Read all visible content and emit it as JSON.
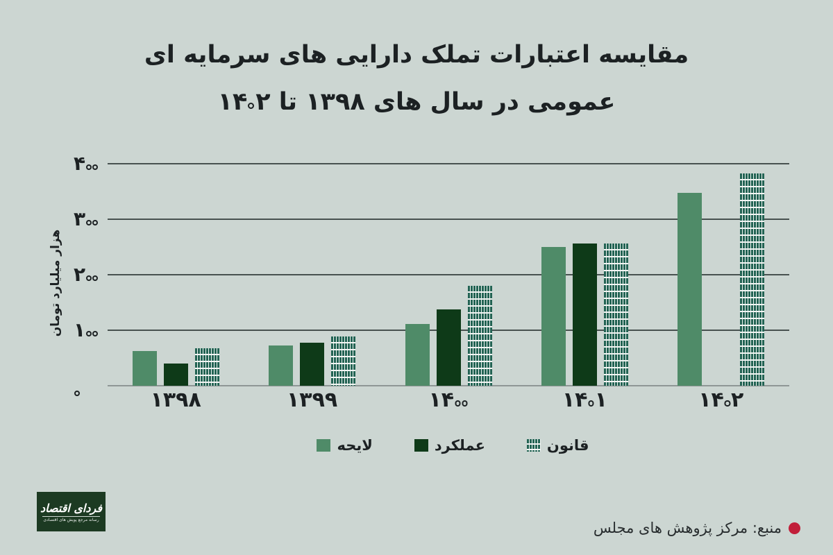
{
  "title": {
    "line1": "مقایسه اعتبارات تملک دارایی های سرمایه ای",
    "line2": "عمومی در سال های ۱۳۹۸ تا ۱۴۰۲"
  },
  "chart_data": {
    "type": "bar",
    "title": "مقایسه اعتبارات تملک دارایی های سرمایه ای عمومی در سال های ۱۳۹۸ تا ۱۴۰۲",
    "categories": [
      "۱۳۹۸",
      "۱۳۹۹",
      "۱۴۰۰",
      "۱۴۰۱",
      "۱۴۰۲"
    ],
    "series": [
      {
        "name": "لایحه",
        "key": "layehe",
        "style": "solid",
        "color": "#4f8b68",
        "values": [
          62,
          73,
          111,
          250,
          348
        ]
      },
      {
        "name": "عملکرد",
        "key": "amalkard",
        "style": "solid",
        "color": "#0e3a18",
        "values": [
          40,
          77,
          138,
          256,
          null
        ]
      },
      {
        "name": "قانون",
        "key": "qanun",
        "style": "dotted-pattern",
        "color": "#226353",
        "values": [
          67,
          89,
          180,
          256,
          382
        ]
      }
    ],
    "xlabel": "",
    "ylabel": "هزار میلیارد تومان",
    "ylim": [
      0,
      400
    ],
    "yticks": [
      "۴۰۰",
      "۳۰۰",
      "۲۰۰",
      "۱۰۰",
      "۰"
    ],
    "ytick_values": [
      400,
      300,
      200,
      100,
      0
    ],
    "grid": "horizontal",
    "legend_position": "bottom"
  },
  "footer": {
    "logo_title": "فردای اقتصاد",
    "logo_tagline": "رسانه مرجع پویش های اقتصادی",
    "source_label": "منبع: مرکز پژوهش های مجلس",
    "source_dot_color": "#c11f3a"
  },
  "colors": {
    "background": "#ccd6d2",
    "text": "#1c2123",
    "gridline": "#47514f",
    "baseline": "#8e9695"
  }
}
